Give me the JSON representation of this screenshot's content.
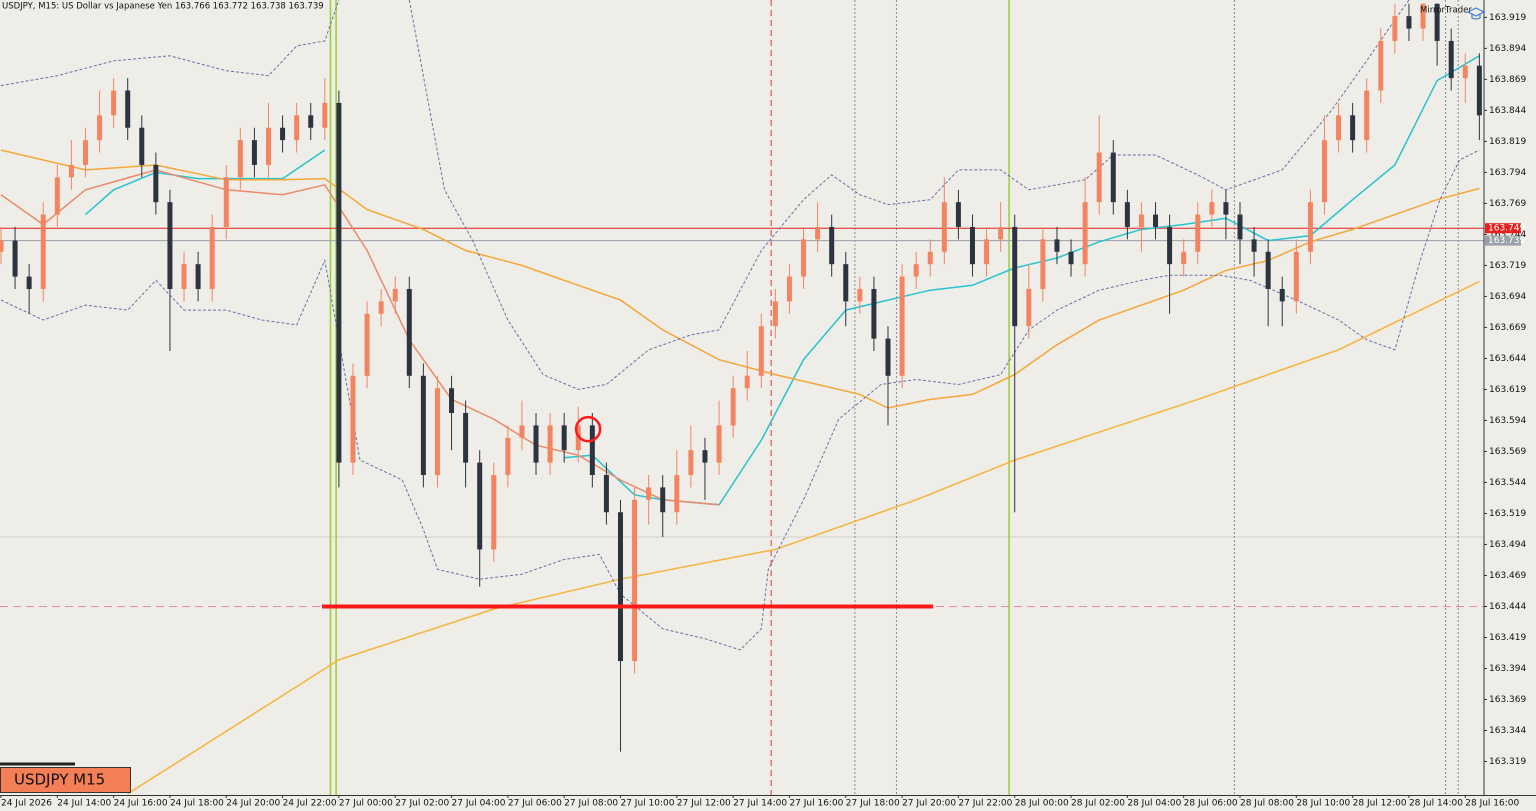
{
  "chart_data": {
    "type": "candlestick",
    "title": "USDJPY, M15:  US Dollar vs Japanese Yen  163.766 163.772 163.738 163.739",
    "brand": "MirrorTrader",
    "symbol_label": "USDJPY M15",
    "bull_color": "#f4845f",
    "bear_color": "#2c3440",
    "grid": false,
    "categories": [
      "24 Jul 2026",
      null,
      null,
      null,
      "24 Jul 14:00",
      null,
      null,
      null,
      "24 Jul 16:00",
      null,
      null,
      null,
      "24 Jul 18:00",
      null,
      null,
      null,
      "24 Jul 20:00",
      null,
      null,
      null,
      "24 Jul 22:00",
      null,
      null,
      null,
      "27 Jul 00:00",
      null,
      null,
      null,
      "27 Jul 02:00",
      null,
      null,
      null,
      "27 Jul 04:00",
      null,
      null,
      null,
      "27 Jul 06:00",
      null,
      null,
      null,
      "27 Jul 08:00",
      null,
      null,
      null,
      "27 Jul 10:00",
      null,
      null,
      null,
      "27 Jul 12:00",
      null,
      null,
      null,
      "27 Jul 14:00",
      null,
      null,
      null,
      "27 Jul 16:00",
      null,
      null,
      null,
      "27 Jul 18:00",
      null,
      null,
      null,
      "27 Jul 20:00",
      null,
      null,
      null,
      "27 Jul 22:00",
      null,
      null,
      null,
      "28 Jul 00:00",
      null,
      null,
      null,
      "28 Jul 02:00",
      null,
      null,
      null,
      "28 Jul 04:00",
      null,
      null,
      null,
      "28 Jul 06:00",
      null,
      null,
      null,
      "28 Jul 08:00",
      null,
      null,
      null,
      "28 Jul 10:00",
      null,
      null,
      null,
      "28 Jul 12:00",
      null,
      null,
      null,
      "28 Jul 14:00",
      null,
      null,
      null,
      "28 Jul 16:00",
      null
    ],
    "open": [
      163.73,
      163.739,
      163.71,
      163.7,
      163.76,
      163.79,
      163.8,
      163.82,
      163.84,
      163.86,
      163.83,
      163.8,
      163.77,
      163.7,
      163.72,
      163.7,
      163.75,
      163.79,
      163.82,
      163.8,
      163.83,
      163.82,
      163.84,
      163.83,
      163.85,
      163.56,
      163.63,
      163.68,
      163.69,
      163.7,
      163.63,
      163.55,
      163.62,
      163.6,
      163.56,
      163.49,
      163.55,
      163.58,
      163.59,
      163.56,
      163.59,
      163.57,
      163.59,
      163.55,
      163.52,
      163.4,
      163.53,
      163.54,
      163.52,
      163.55,
      163.57,
      163.56,
      163.59,
      163.62,
      163.63,
      163.67,
      163.69,
      163.71,
      163.74,
      163.75,
      163.72,
      163.69,
      163.7,
      163.66,
      163.63,
      163.71,
      163.72,
      163.73,
      163.77,
      163.75,
      163.72,
      163.74,
      163.75,
      163.67,
      163.7,
      163.74,
      163.73,
      163.72,
      163.77,
      163.81,
      163.77,
      163.75,
      163.76,
      163.75,
      163.72,
      163.73,
      163.76,
      163.77,
      163.76,
      163.74,
      163.73,
      163.7,
      163.69,
      163.73,
      163.77,
      163.82,
      163.84,
      163.82,
      163.86,
      163.9,
      163.92,
      163.91,
      163.93,
      163.9,
      163.87,
      163.88
    ],
    "high": [
      163.75,
      163.75,
      163.72,
      163.77,
      163.8,
      163.82,
      163.83,
      163.86,
      163.87,
      163.87,
      163.84,
      163.81,
      163.78,
      163.73,
      163.73,
      163.76,
      163.8,
      163.83,
      163.83,
      163.85,
      163.84,
      163.85,
      163.85,
      163.87,
      163.86,
      163.64,
      163.69,
      163.7,
      163.71,
      163.71,
      163.64,
      163.63,
      163.63,
      163.61,
      163.57,
      163.56,
      163.59,
      163.61,
      163.6,
      163.6,
      163.6,
      163.605,
      163.6,
      163.56,
      163.53,
      163.54,
      163.55,
      163.55,
      163.57,
      163.59,
      163.58,
      163.61,
      163.63,
      163.65,
      163.68,
      163.7,
      163.72,
      163.75,
      163.77,
      163.76,
      163.73,
      163.71,
      163.71,
      163.67,
      163.72,
      163.73,
      163.74,
      163.79,
      163.78,
      163.76,
      163.75,
      163.77,
      163.76,
      163.72,
      163.75,
      163.75,
      163.74,
      163.79,
      163.84,
      163.82,
      163.78,
      163.77,
      163.77,
      163.76,
      163.74,
      163.77,
      163.78,
      163.78,
      163.77,
      163.75,
      163.74,
      163.71,
      163.74,
      163.78,
      163.84,
      163.85,
      163.85,
      163.87,
      163.91,
      163.93,
      163.93,
      163.93,
      163.93,
      163.91,
      163.89,
      163.89
    ],
    "low": [
      163.72,
      163.7,
      163.68,
      163.69,
      163.75,
      163.78,
      163.79,
      163.81,
      163.83,
      163.82,
      163.79,
      163.76,
      163.65,
      163.69,
      163.69,
      163.69,
      163.74,
      163.78,
      163.79,
      163.79,
      163.81,
      163.81,
      163.82,
      163.82,
      163.54,
      163.55,
      163.62,
      163.67,
      163.68,
      163.62,
      163.54,
      163.54,
      163.57,
      163.54,
      163.46,
      163.48,
      163.54,
      163.57,
      163.55,
      163.55,
      163.56,
      163.56,
      163.54,
      163.51,
      163.327,
      163.39,
      163.51,
      163.5,
      163.51,
      163.54,
      163.53,
      163.55,
      163.58,
      163.61,
      163.62,
      163.66,
      163.68,
      163.7,
      163.73,
      163.71,
      163.67,
      163.68,
      163.65,
      163.59,
      163.62,
      163.7,
      163.71,
      163.72,
      163.74,
      163.71,
      163.71,
      163.73,
      163.52,
      163.66,
      163.69,
      163.72,
      163.71,
      163.71,
      163.76,
      163.76,
      163.74,
      163.73,
      163.74,
      163.68,
      163.71,
      163.72,
      163.75,
      163.74,
      163.72,
      163.71,
      163.67,
      163.67,
      163.68,
      163.72,
      163.76,
      163.81,
      163.81,
      163.81,
      163.85,
      163.89,
      163.9,
      163.9,
      163.88,
      163.86,
      163.85,
      163.82
    ],
    "close": [
      163.739,
      163.71,
      163.7,
      163.76,
      163.79,
      163.8,
      163.82,
      163.84,
      163.86,
      163.83,
      163.8,
      163.77,
      163.7,
      163.72,
      163.7,
      163.75,
      163.79,
      163.82,
      163.8,
      163.83,
      163.82,
      163.84,
      163.83,
      163.85,
      163.56,
      163.63,
      163.68,
      163.69,
      163.7,
      163.63,
      163.55,
      163.62,
      163.6,
      163.56,
      163.49,
      163.55,
      163.58,
      163.59,
      163.56,
      163.59,
      163.57,
      163.59,
      163.55,
      163.52,
      163.4,
      163.53,
      163.54,
      163.52,
      163.55,
      163.57,
      163.56,
      163.59,
      163.62,
      163.63,
      163.67,
      163.69,
      163.71,
      163.74,
      163.75,
      163.72,
      163.69,
      163.7,
      163.66,
      163.63,
      163.71,
      163.72,
      163.73,
      163.77,
      163.75,
      163.72,
      163.74,
      163.75,
      163.67,
      163.7,
      163.74,
      163.73,
      163.72,
      163.77,
      163.81,
      163.77,
      163.75,
      163.76,
      163.75,
      163.72,
      163.73,
      163.76,
      163.77,
      163.76,
      163.74,
      163.73,
      163.7,
      163.69,
      163.73,
      163.77,
      163.82,
      163.84,
      163.82,
      163.86,
      163.9,
      163.92,
      163.91,
      163.93,
      163.9,
      163.87,
      163.88,
      163.84
    ],
    "indicators": [
      {
        "color": "#27c4cf",
        "dash": false,
        "x": [
          6,
          8,
          11,
          14,
          20,
          23,
          24,
          40,
          42,
          45,
          47,
          51,
          54,
          57,
          60,
          63,
          66,
          69,
          72,
          75,
          78,
          81,
          84,
          87,
          90,
          93,
          96,
          99,
          102,
          105
        ],
        "values": [
          163.76,
          163.78,
          163.794,
          163.789,
          163.789,
          163.812,
          null,
          163.564,
          163.566,
          163.534,
          163.53,
          163.526,
          163.578,
          163.643,
          163.683,
          163.691,
          163.699,
          163.703,
          163.717,
          163.725,
          163.738,
          163.748,
          163.752,
          163.757,
          163.739,
          163.743,
          163.772,
          163.8,
          163.868,
          163.888
        ]
      },
      {
        "color": "#ec8a6c",
        "dash": false,
        "x": [
          0,
          3,
          6,
          11,
          16,
          20,
          23,
          26,
          29,
          32,
          35,
          38,
          41,
          44,
          47,
          51
        ],
        "values": [
          163.776,
          163.752,
          163.78,
          163.796,
          163.78,
          163.776,
          163.784,
          163.731,
          163.659,
          163.611,
          163.595,
          163.574,
          163.566,
          163.546,
          163.53,
          163.526
        ]
      },
      {
        "color": "#f5a637",
        "dash": false,
        "x": [
          0,
          6,
          11,
          16,
          20,
          23,
          26,
          30,
          33,
          37,
          41,
          44,
          47,
          51,
          55,
          58,
          61,
          63,
          66,
          69,
          72,
          75,
          78,
          81,
          84,
          87,
          90,
          93,
          96,
          99,
          102,
          105
        ],
        "values": [
          163.812,
          163.796,
          163.8,
          163.788,
          163.788,
          163.789,
          163.764,
          163.748,
          163.731,
          163.719,
          163.703,
          163.691,
          163.667,
          163.643,
          163.631,
          163.623,
          163.615,
          163.604,
          163.611,
          163.615,
          163.631,
          163.655,
          163.675,
          163.687,
          163.699,
          163.715,
          163.723,
          163.738,
          163.748,
          163.76,
          163.772,
          163.781
        ]
      },
      {
        "color": "#f7b33a",
        "dash": false,
        "x": [
          9,
          24,
          35,
          44,
          55,
          65,
          72,
          85,
          95,
          105
        ],
        "values": [
          163.293,
          163.401,
          163.442,
          163.466,
          163.49,
          163.53,
          163.562,
          163.611,
          163.651,
          163.706
        ]
      },
      {
        "color": "#6b6fa8",
        "dash": true,
        "x": [
          0,
          4,
          8,
          12,
          16,
          19,
          21,
          23,
          24,
          25,
          29,
          31.5,
          33.5,
          36,
          38.5,
          41,
          43,
          46,
          49,
          51,
          54,
          57,
          59,
          61,
          63,
          66,
          68,
          71,
          73,
          77,
          79,
          82,
          85,
          87,
          91,
          94.5,
          97,
          99,
          100
        ],
        "values": [
          163.864,
          163.872,
          163.884,
          163.888,
          163.876,
          163.872,
          163.896,
          163.9,
          163.933,
          null,
          163.933,
          163.78,
          163.739,
          163.675,
          163.631,
          163.619,
          163.623,
          163.651,
          163.663,
          163.667,
          163.731,
          163.772,
          163.792,
          163.776,
          163.768,
          163.772,
          163.796,
          163.796,
          163.78,
          163.788,
          163.808,
          163.808,
          163.792,
          163.78,
          163.796,
          163.844,
          163.884,
          163.917,
          163.933
        ]
      },
      {
        "color": "#6b6fa8",
        "dash": true,
        "x": [
          0,
          3,
          6,
          9,
          11,
          13,
          16,
          18.5,
          21,
          23,
          24,
          25.5,
          28.5,
          30,
          31,
          34,
          37,
          40,
          42.5,
          44,
          47,
          50,
          52.5,
          54,
          54.5,
          57,
          59.5,
          62.5,
          65,
          68,
          71,
          73,
          75,
          78,
          81,
          83,
          86.6,
          88.7,
          92,
          95,
          97,
          99,
          100.8,
          102.2,
          103.6,
          105
        ],
        "values": [
          163.691,
          163.675,
          163.687,
          163.683,
          163.707,
          163.683,
          163.683,
          163.675,
          163.671,
          163.723,
          163.659,
          163.562,
          163.546,
          163.506,
          163.474,
          163.466,
          163.47,
          163.482,
          163.486,
          163.454,
          163.426,
          163.418,
          163.409,
          163.426,
          163.474,
          163.53,
          163.595,
          163.623,
          163.627,
          163.623,
          163.631,
          163.667,
          163.683,
          163.699,
          163.707,
          163.711,
          163.711,
          163.707,
          163.691,
          163.675,
          163.659,
          163.651,
          163.723,
          163.772,
          163.804,
          163.812
        ]
      }
    ],
    "price_lines": [
      {
        "value": 163.749,
        "color": "#e8201e"
      },
      {
        "value": 163.739,
        "color": "#9aa0a8"
      }
    ],
    "hlines": [
      {
        "value": 163.444,
        "color": "#f08aa8",
        "dash": true
      },
      {
        "value": 163.5,
        "color": "#d2d0ca",
        "dash": false
      }
    ],
    "segments": [
      {
        "x": [
          22.8,
          66.2
        ],
        "value": 163.444,
        "color": "#ff1a1a"
      }
    ],
    "vlines": [
      {
        "x": 23.4,
        "color": "#9acd32",
        "dash": false
      },
      {
        "x": 23.8,
        "color": "#9acd32",
        "dash": false
      },
      {
        "x": 71.6,
        "color": "#9acd32",
        "dash": false
      },
      {
        "x": 54.7,
        "color": "#e8352e",
        "dash": true
      },
      {
        "x": 60.65,
        "color": "#8a8a8a",
        "dash": true
      },
      {
        "x": 63.6,
        "color": "#8a8a8a",
        "dash": true
      },
      {
        "x": 87.6,
        "color": "#8a8a8a",
        "dash": true
      },
      {
        "x": 102.6,
        "color": "#8a8a8a",
        "dash": true
      },
      {
        "x": 103.5,
        "color": "#8a8a8a",
        "dash": true
      }
    ],
    "marker": {
      "x": 41.7,
      "value": 163.587,
      "color": "#ff1a1a"
    },
    "xlim": [
      -0.07,
      105.33
    ],
    "ylim": [
      163.292,
      163.933
    ],
    "yticks": [
      163.319,
      163.344,
      163.369,
      163.394,
      163.419,
      163.444,
      163.469,
      163.494,
      163.519,
      163.544,
      163.569,
      163.594,
      163.619,
      163.644,
      163.669,
      163.694,
      163.719,
      163.744,
      163.769,
      163.794,
      163.819,
      163.844,
      163.869,
      163.894,
      163.919
    ]
  }
}
